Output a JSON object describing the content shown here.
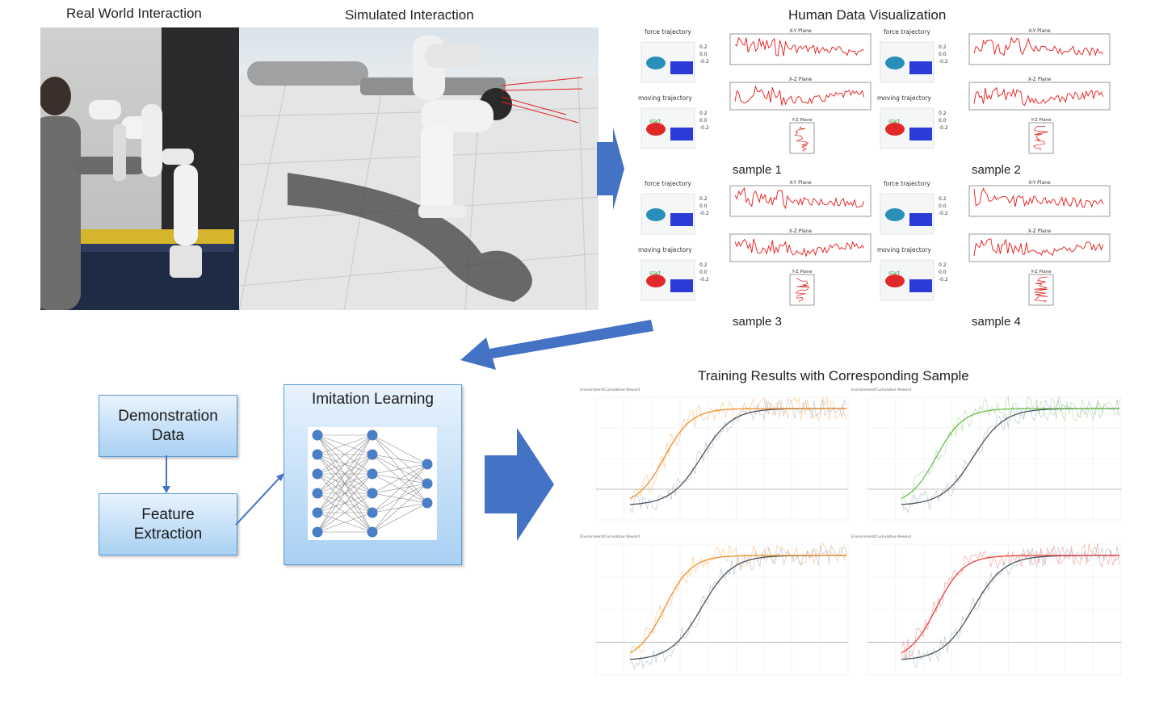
{
  "captions": {
    "real_world": "Real World Interaction",
    "simulated": "Simulated Interaction",
    "human_data": "Human Data Visualization",
    "training_results": "Training Results with Corresponding Sample"
  },
  "viz_panel": {
    "force_label": "force trajectory",
    "moving_label": "moving trajectory",
    "xy_plane": "X-Y Plane",
    "xz_plane": "X-Z Plane",
    "yz_plane": "Y-Z Plane",
    "start_label": "start",
    "samples": [
      "sample 1",
      "sample 2",
      "sample 3",
      "sample 4"
    ]
  },
  "pipeline": {
    "demonstration_line1": "Demonstration",
    "demonstration_line2": "Data",
    "feature_line1": "Feature",
    "feature_line2": "Extraction",
    "imitation_title": "Imitation Learning"
  },
  "charts": {
    "chart_title": "Environment/Cumulative Reward",
    "series_colors": [
      "#f28e2b",
      "#6abf4b",
      "#f28e2b",
      "#e8403a"
    ],
    "baseline_color": "#4a5561"
  },
  "colors": {
    "box_fill_top": "#e8f3fd",
    "box_fill_bottom": "#a9d0f3",
    "box_border": "#5b9bd5",
    "arrow": "#4472c4"
  }
}
